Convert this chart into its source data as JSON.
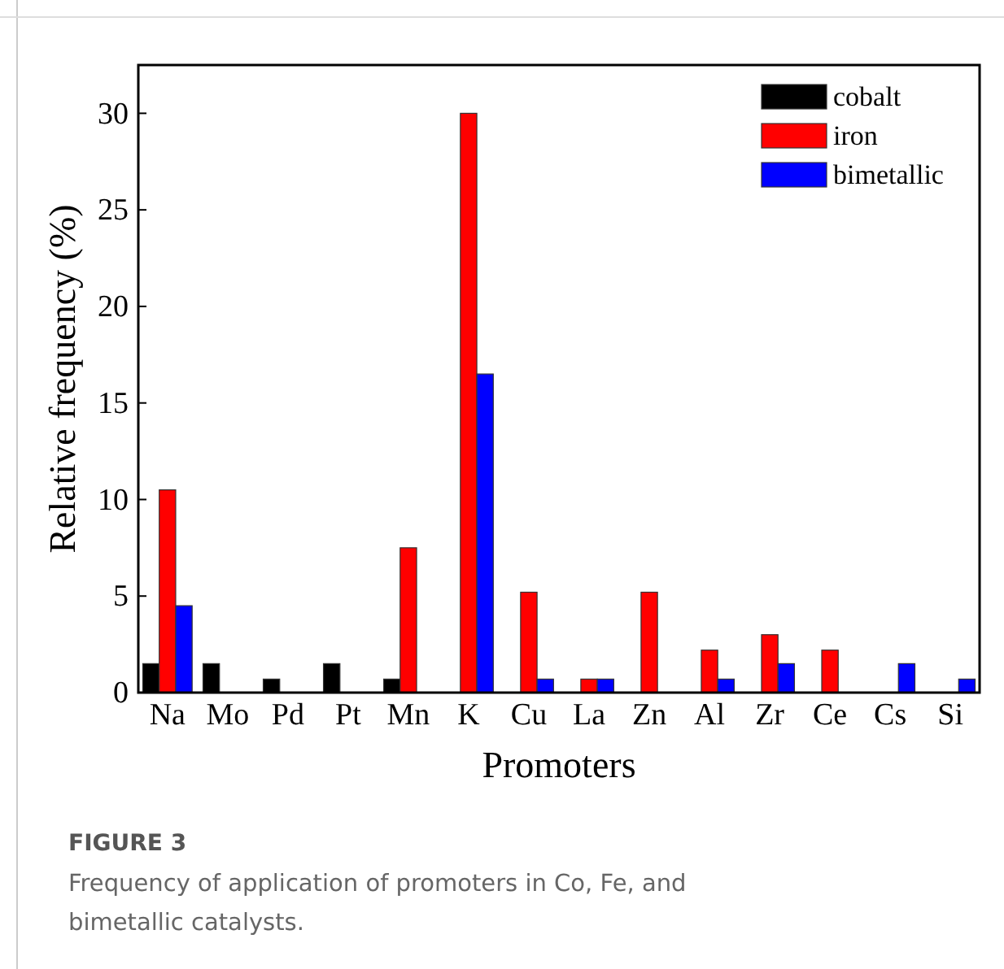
{
  "chart_data": {
    "type": "bar",
    "xlabel": "Promoters",
    "ylabel": "Relative frequency (%)",
    "categories": [
      "Na",
      "Mo",
      "Pd",
      "Pt",
      "Mn",
      "K",
      "Cu",
      "La",
      "Zn",
      "Al",
      "Zr",
      "Ce",
      "Cs",
      "Si"
    ],
    "series": [
      {
        "name": "cobalt",
        "color": "#000000",
        "values": [
          1.5,
          1.5,
          0.7,
          1.5,
          0.7,
          0,
          0,
          0,
          0,
          0,
          0,
          0,
          0,
          0
        ]
      },
      {
        "name": "iron",
        "color": "#ff0000",
        "values": [
          10.5,
          0,
          0,
          0,
          7.5,
          30,
          5.2,
          0.7,
          5.2,
          2.2,
          3,
          2.2,
          0,
          0
        ]
      },
      {
        "name": "bimetallic",
        "color": "#0000ff",
        "values": [
          4.5,
          0,
          0,
          0,
          0,
          16.5,
          0.7,
          0.7,
          0,
          0.7,
          1.5,
          0,
          1.5,
          0.7
        ]
      }
    ],
    "ylim": [
      0,
      32.5
    ],
    "yticks": [
      0,
      5,
      10,
      15,
      20,
      25,
      30
    ],
    "grid": false,
    "legend": "top right",
    "annotations": [
      "FIGURE 3",
      "Frequency of application of promoters in Co, Fe, and bimetallic catalysts."
    ]
  }
}
